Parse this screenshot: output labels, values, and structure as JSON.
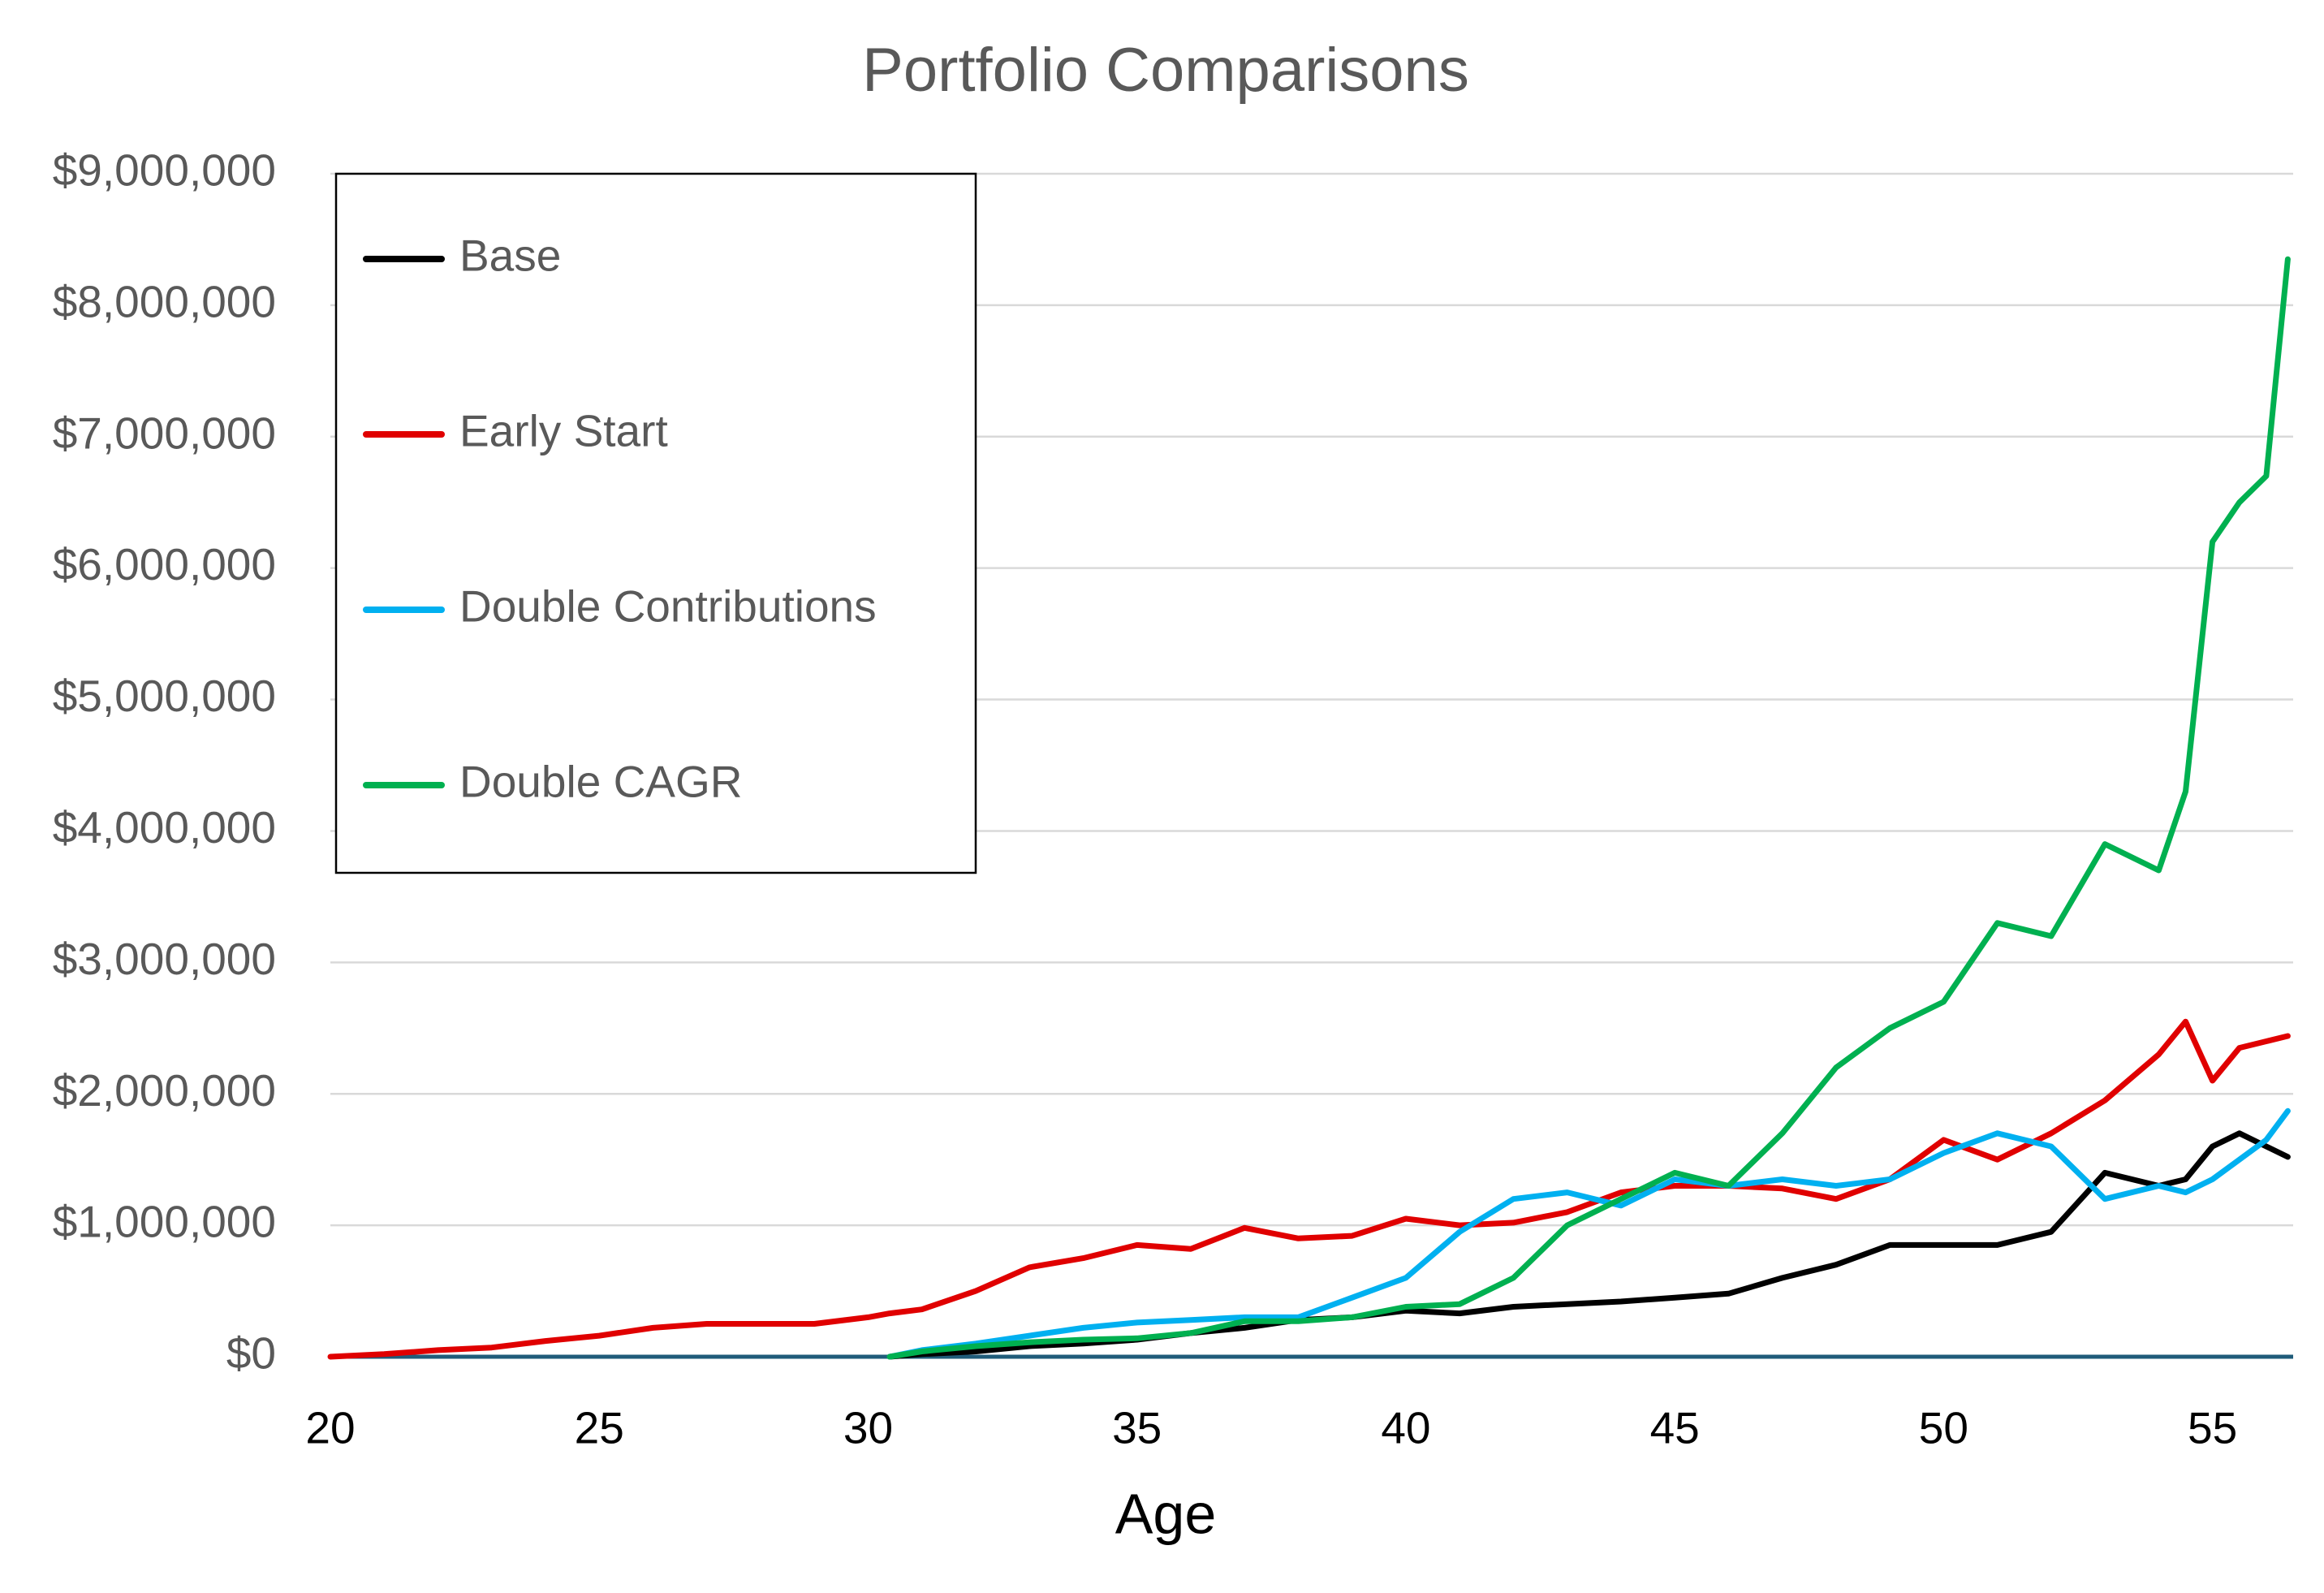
{
  "chart_data": {
    "type": "line",
    "title": "Portfolio Comparisons",
    "x_label": "Age",
    "x": [
      20,
      21,
      22,
      23,
      24,
      25,
      26,
      27,
      28,
      29,
      30,
      30.4,
      31,
      32,
      33,
      34,
      35,
      36,
      37,
      38,
      39,
      40,
      41,
      42,
      43,
      44,
      45,
      46,
      47,
      48,
      49,
      50,
      51,
      52,
      53,
      54,
      54.5,
      55,
      55.5,
      56,
      56.4
    ],
    "xlim": [
      20,
      56.5
    ],
    "xticks": [
      20,
      25,
      30,
      35,
      40,
      45,
      50,
      55
    ],
    "ylim": [
      0,
      9000000
    ],
    "yticks": [
      {
        "value": 0,
        "label": "$0"
      },
      {
        "value": 1000000,
        "label": "$1,000,000"
      },
      {
        "value": 2000000,
        "label": "$2,000,000"
      },
      {
        "value": 3000000,
        "label": "$3,000,000"
      },
      {
        "value": 4000000,
        "label": "$4,000,000"
      },
      {
        "value": 5000000,
        "label": "$5,000,000"
      },
      {
        "value": 6000000,
        "label": "$6,000,000"
      },
      {
        "value": 7000000,
        "label": "$7,000,000"
      },
      {
        "value": 8000000,
        "label": "$8,000,000"
      },
      {
        "value": 9000000,
        "label": "$9,000,000"
      }
    ],
    "grid": true,
    "legend": "top-left",
    "series": [
      {
        "name": "Base",
        "color": "#000000",
        "values": [
          null,
          null,
          null,
          null,
          null,
          null,
          null,
          null,
          null,
          null,
          null,
          0,
          20000,
          40000,
          80000,
          100000,
          130000,
          180000,
          220000,
          280000,
          300000,
          350000,
          330000,
          380000,
          400000,
          420000,
          450000,
          480000,
          600000,
          700000,
          850000,
          850000,
          850000,
          950000,
          1400000,
          1300000,
          1350000,
          1600000,
          1700000,
          1600000,
          1520000
        ]
      },
      {
        "name": "Early Start",
        "color": "#e00000",
        "values": [
          0,
          20000,
          50000,
          70000,
          120000,
          160000,
          220000,
          250000,
          250000,
          250000,
          300000,
          330000,
          360000,
          500000,
          680000,
          750000,
          850000,
          820000,
          980000,
          900000,
          920000,
          1050000,
          1000000,
          1020000,
          1100000,
          1250000,
          1300000,
          1300000,
          1280000,
          1200000,
          1350000,
          1650000,
          1500000,
          1700000,
          1950000,
          2300000,
          2550000,
          2100000,
          2350000,
          2400000,
          2440000
        ]
      },
      {
        "name": "Double Contributions",
        "color": "#00b0f0",
        "values": [
          null,
          null,
          null,
          null,
          null,
          null,
          null,
          null,
          null,
          null,
          null,
          0,
          50000,
          100000,
          160000,
          220000,
          260000,
          280000,
          300000,
          300000,
          450000,
          600000,
          950000,
          1200000,
          1250000,
          1150000,
          1350000,
          1300000,
          1350000,
          1300000,
          1350000,
          1550000,
          1700000,
          1600000,
          1200000,
          1300000,
          1250000,
          1350000,
          1500000,
          1650000,
          1870000
        ]
      },
      {
        "name": "Double CAGR",
        "color": "#00b050",
        "values": [
          null,
          null,
          null,
          null,
          null,
          null,
          null,
          null,
          null,
          null,
          null,
          0,
          40000,
          80000,
          110000,
          130000,
          140000,
          180000,
          270000,
          270000,
          300000,
          380000,
          400000,
          600000,
          1000000,
          1200000,
          1400000,
          1300000,
          1700000,
          2200000,
          2500000,
          2700000,
          3300000,
          3200000,
          3900000,
          3700000,
          4300000,
          6200000,
          6500000,
          6700000,
          8350000
        ]
      }
    ]
  }
}
